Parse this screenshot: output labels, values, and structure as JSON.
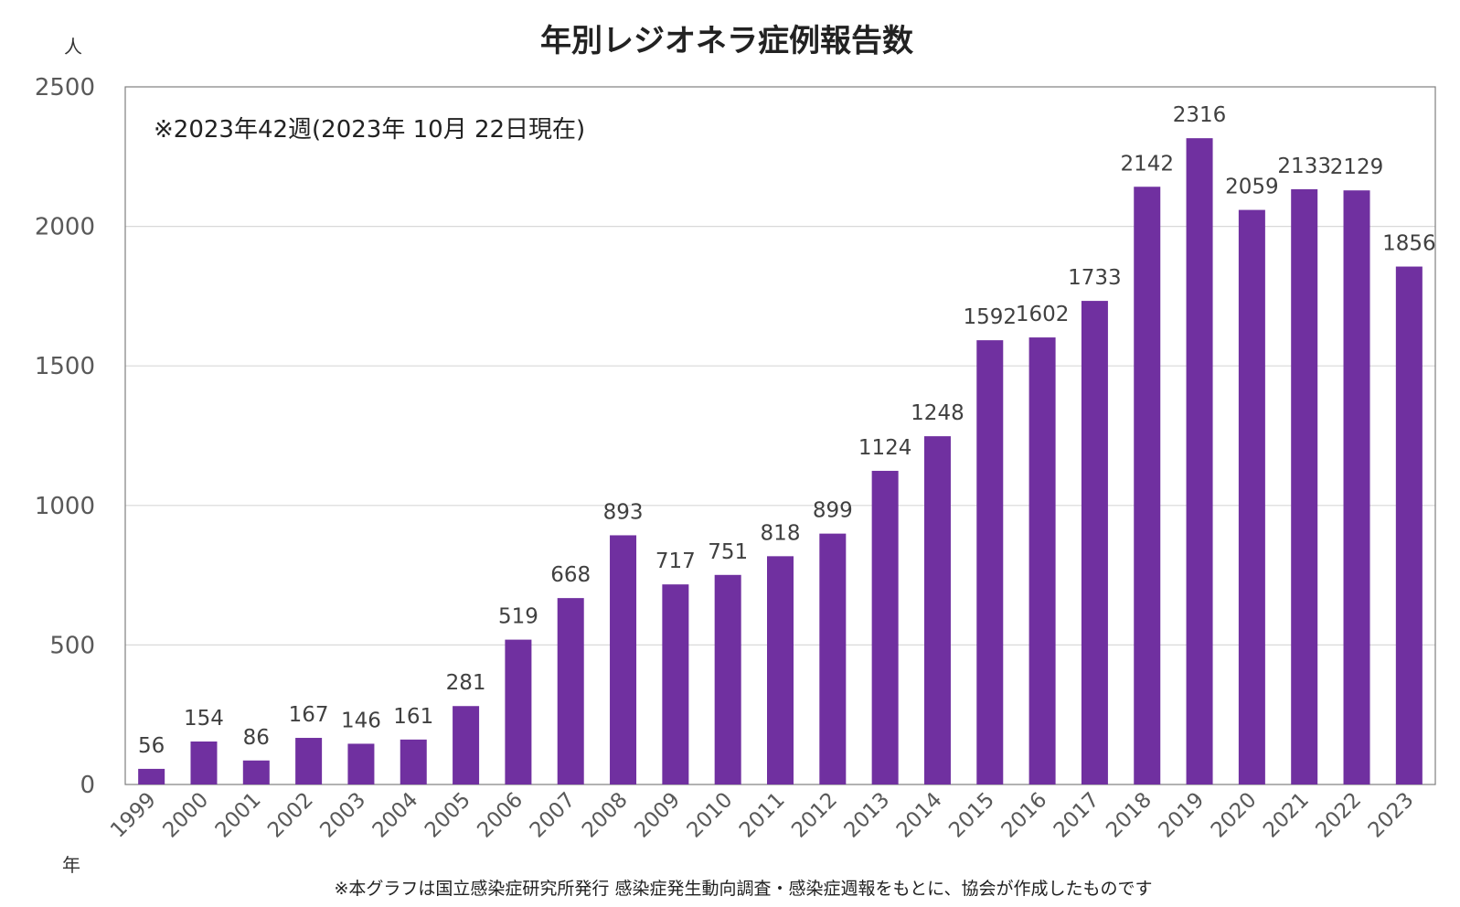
{
  "chart_data": {
    "type": "bar",
    "title": "年別レジオネラ症例報告数",
    "ylabel": "人",
    "xlabel": "年",
    "annotation": "※2023年42週(2023年 10月 22日現在)",
    "footnote": "※本グラフは国立感染症研究所発行 感染症発生動向調査・感染症週報をもとに、協会が作成したものです",
    "categories": [
      "1999",
      "2000",
      "2001",
      "2002",
      "2003",
      "2004",
      "2005",
      "2006",
      "2007",
      "2008",
      "2009",
      "2010",
      "2011",
      "2012",
      "2013",
      "2014",
      "2015",
      "2016",
      "2017",
      "2018",
      "2019",
      "2020",
      "2021",
      "2022",
      "2023"
    ],
    "values": [
      56,
      154,
      86,
      167,
      146,
      161,
      281,
      519,
      668,
      893,
      717,
      751,
      818,
      899,
      1124,
      1248,
      1592,
      1602,
      1733,
      2142,
      2316,
      2059,
      2133,
      2129,
      1856
    ],
    "data_labels": [
      "56",
      "154",
      "86",
      "167",
      "146",
      "161",
      "281",
      "519",
      "668",
      "893",
      "717",
      "751",
      "818",
      "899",
      "1124",
      "1248",
      "1592",
      "1602",
      "1733",
      "2142",
      "2316",
      "2059",
      "2133",
      "2129",
      "1856"
    ],
    "ylim": [
      0,
      2500
    ],
    "yticks": [
      "0",
      "500",
      "1000",
      "1500",
      "2000",
      "2500"
    ],
    "bar_color": "#7030A0",
    "grid": true
  }
}
